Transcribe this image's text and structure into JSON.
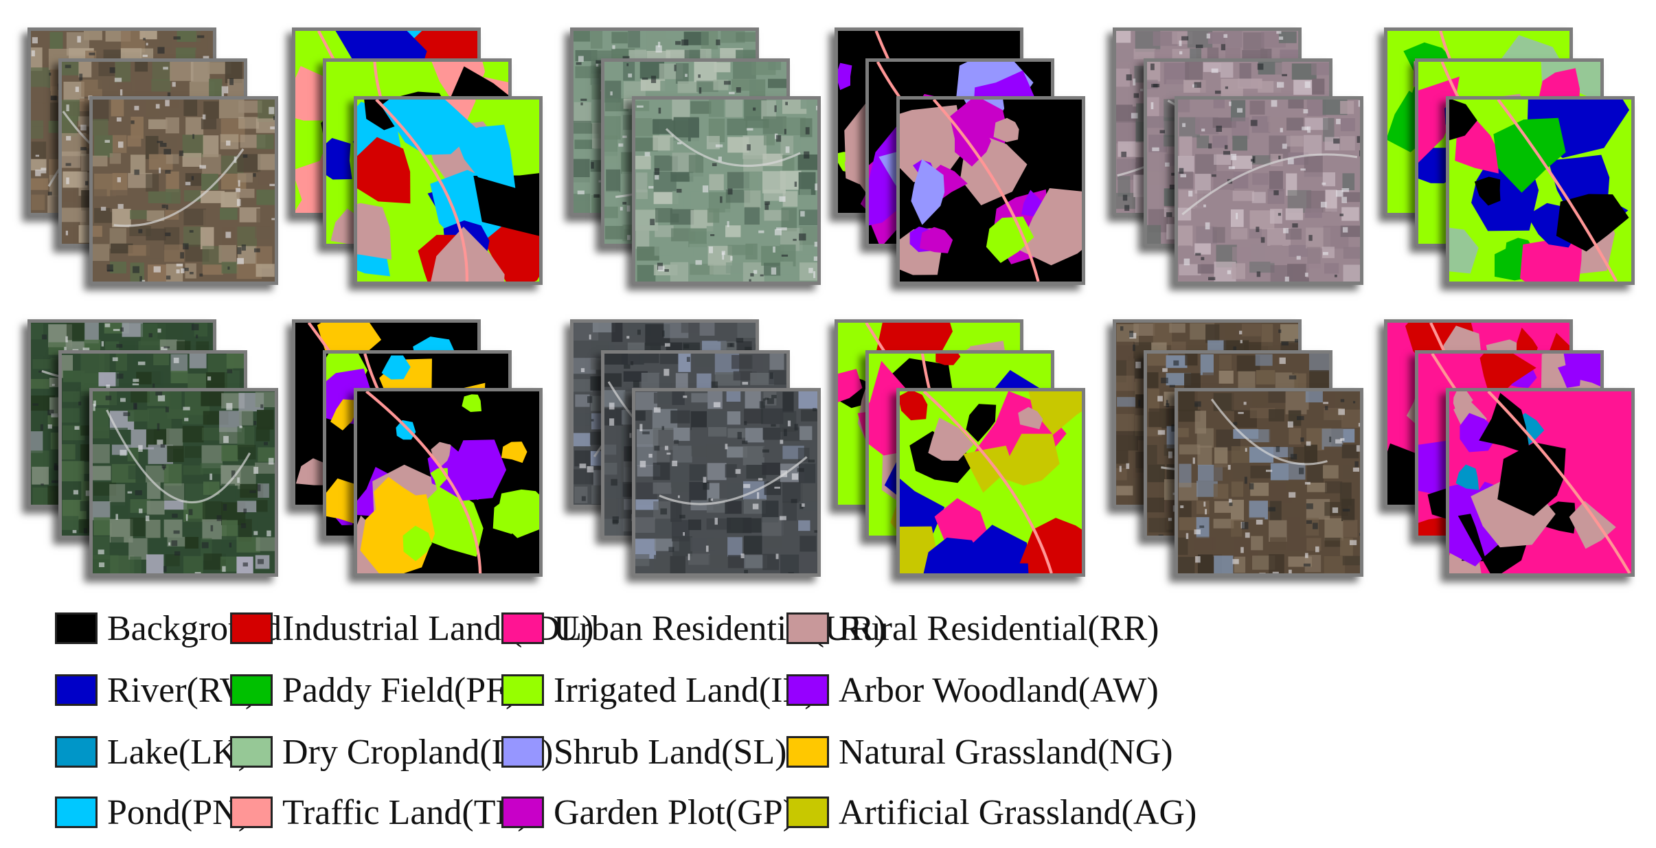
{
  "colors": {
    "background": "#000000",
    "industrial": "#d40000",
    "urban": "#ff1493",
    "rural": "#c8989a",
    "river": "#0000c8",
    "paddy": "#00c000",
    "irrigated": "#96ff00",
    "arbor": "#9600ff",
    "lake": "#0096c8",
    "dry": "#96c896",
    "shrub": "#9696ff",
    "natural_grass": "#ffc800",
    "pond": "#00c8ff",
    "traffic": "#ff9696",
    "garden": "#c800c8",
    "artificial_grass": "#c8c800",
    "tile_border": "#7c7c7c"
  },
  "panels": [
    {
      "kind": "image",
      "palette": "brown-fields"
    },
    {
      "kind": "mask",
      "base": "irrigated",
      "accents": [
        "industrial",
        "pond",
        "background",
        "rural",
        "river",
        "traffic"
      ]
    },
    {
      "kind": "image",
      "palette": "green-gray"
    },
    {
      "kind": "mask",
      "base": "background",
      "accents": [
        "irrigated",
        "garden",
        "shrub",
        "rural",
        "arbor"
      ]
    },
    {
      "kind": "image",
      "palette": "urban-pink"
    },
    {
      "kind": "mask",
      "base": "irrigated",
      "accents": [
        "background",
        "dry",
        "river",
        "paddy",
        "urban",
        "rural"
      ]
    },
    {
      "kind": "image",
      "palette": "forest-green"
    },
    {
      "kind": "mask",
      "base": "background",
      "accents": [
        "irrigated",
        "arbor",
        "natural_grass",
        "rural",
        "pond"
      ]
    },
    {
      "kind": "image",
      "palette": "dark-urban"
    },
    {
      "kind": "mask",
      "base": "irrigated",
      "accents": [
        "industrial",
        "urban",
        "rural",
        "background",
        "river",
        "artificial_grass"
      ]
    },
    {
      "kind": "image",
      "palette": "brown-hills"
    },
    {
      "kind": "mask",
      "base": "urban",
      "accents": [
        "background",
        "industrial",
        "arbor",
        "rural",
        "lake"
      ]
    }
  ],
  "legend": [
    {
      "label": "Background",
      "color": "#000000"
    },
    {
      "label": "Industrial Land (IDL)",
      "color": "#d40000"
    },
    {
      "label": "Urban Residential(UR)",
      "color": "#ff1493"
    },
    {
      "label": "Rural Residential(RR)",
      "color": "#c8989a"
    },
    {
      "label": "River(RV)",
      "color": "#0000c8"
    },
    {
      "label": "Paddy Field(PF)",
      "color": "#00c000"
    },
    {
      "label": "Irrigated Land(IL)",
      "color": "#96ff00"
    },
    {
      "label": "Arbor Woodland(AW)",
      "color": "#9600ff"
    },
    {
      "label": "Lake(LK)",
      "color": "#0096c8"
    },
    {
      "label": "Dry Cropland(DC)",
      "color": "#96c896"
    },
    {
      "label": "Shrub Land(SL)",
      "color": "#9696ff"
    },
    {
      "label": "Natural Grassland(NG)",
      "color": "#ffc800"
    },
    {
      "label": "Pond(PN)",
      "color": "#00c8ff"
    },
    {
      "label": "Traffic Land(TL)",
      "color": "#ff9696"
    },
    {
      "label": "Garden Plot(GP)",
      "color": "#c800c8"
    },
    {
      "label": "Artificial Grassland(AG)",
      "color": "#c8c800"
    }
  ]
}
